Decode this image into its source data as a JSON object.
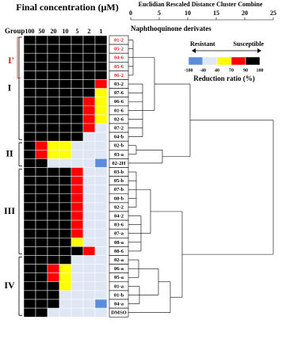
{
  "chart_data": {
    "type": "heatmap",
    "title": "Final concentration (μM)",
    "group_header": "Group",
    "columns": [
      "100",
      "50",
      "20",
      "10",
      "5",
      "2",
      "1"
    ],
    "row_header": "Naphthoquinone derivates",
    "distance_axis": {
      "label": "Euclidian Rescaled Distance Cluster Combine",
      "ticks": [
        0,
        5,
        10,
        15,
        20,
        25
      ],
      "lim": [
        0,
        25
      ]
    },
    "groups": [
      "I'",
      "I",
      "II",
      "III",
      "IV"
    ],
    "legend": {
      "left": "Resistant",
      "right": "Susceptible",
      "title": "Reduction ratio (%)",
      "ticks": [
        -100,
        -40,
        40,
        70,
        90,
        100
      ],
      "classes": [
        {
          "code": "b",
          "color": "#5b8ed8"
        },
        {
          "code": "w",
          "color": "#dfe7f4"
        },
        {
          "code": "y",
          "color": "#ffff00"
        },
        {
          "code": "r",
          "color": "#ff0000"
        },
        {
          "code": "k",
          "color": "#000000"
        }
      ]
    },
    "rows": [
      {
        "label": "01-2",
        "color": "#e02020",
        "cells": "kkkkkkk"
      },
      {
        "label": "05-2",
        "color": "#e02020",
        "cells": "kkkkkkk"
      },
      {
        "label": "04-6",
        "color": "#e02020",
        "cells": "kkkkkkk"
      },
      {
        "label": "05-6",
        "color": "#e02020",
        "cells": "kkkkkkk"
      },
      {
        "label": "06-2",
        "color": "#e02020",
        "cells": "kkkkkkk"
      },
      {
        "label": "03-2",
        "color": "#000000",
        "cells": "kkkkkkr"
      },
      {
        "label": "07-6",
        "color": "#000000",
        "cells": "kkkkkky"
      },
      {
        "label": "06-6",
        "color": "#000000",
        "cells": "kkkkkry"
      },
      {
        "label": "01-6",
        "color": "#000000",
        "cells": "kkkkkry"
      },
      {
        "label": "02-6",
        "color": "#000000",
        "cells": "kkkkkry"
      },
      {
        "label": "07-2",
        "color": "#000000",
        "cells": "kkkkkrw"
      },
      {
        "label": "04-b",
        "color": "#000000",
        "cells": "kkkkkww"
      },
      {
        "label": "02-b",
        "color": "#000000",
        "cells": "kryywww"
      },
      {
        "label": "03-a",
        "color": "#000000",
        "cells": "kryywww"
      },
      {
        "label": "02-2H",
        "color": "#000000",
        "cells": "kkwwwwb"
      },
      {
        "label": "03-b",
        "color": "#000000",
        "cells": "kkkkrww"
      },
      {
        "label": "05-b",
        "color": "#000000",
        "cells": "kkkkrww"
      },
      {
        "label": "07-b",
        "color": "#000000",
        "cells": "kkkkrww"
      },
      {
        "label": "08-b",
        "color": "#000000",
        "cells": "kkkkrww"
      },
      {
        "label": "02-2",
        "color": "#000000",
        "cells": "kkkkrww"
      },
      {
        "label": "04-2",
        "color": "#000000",
        "cells": "kkkkrww"
      },
      {
        "label": "03-6",
        "color": "#000000",
        "cells": "kkkkrww"
      },
      {
        "label": "07-a",
        "color": "#000000",
        "cells": "kkkkrww"
      },
      {
        "label": "08-a",
        "color": "#000000",
        "cells": "kkkkyww"
      },
      {
        "label": "08-6",
        "color": "#000000",
        "cells": "kkkkkrw"
      },
      {
        "label": "02-a",
        "color": "#000000",
        "cells": "kkkkwww"
      },
      {
        "label": "06-a",
        "color": "#000000",
        "cells": "kkrywww"
      },
      {
        "label": "05-a",
        "color": "#000000",
        "cells": "kkrywww"
      },
      {
        "label": "01-a",
        "color": "#000000",
        "cells": "kkkywww"
      },
      {
        "label": "01-b",
        "color": "#000000",
        "cells": "kkkwwww"
      },
      {
        "label": "04-a",
        "color": "#000000",
        "cells": "kkkwwwb"
      },
      {
        "label": "DMSO",
        "color": "#000000",
        "cells": "kkwwwww"
      }
    ]
  }
}
